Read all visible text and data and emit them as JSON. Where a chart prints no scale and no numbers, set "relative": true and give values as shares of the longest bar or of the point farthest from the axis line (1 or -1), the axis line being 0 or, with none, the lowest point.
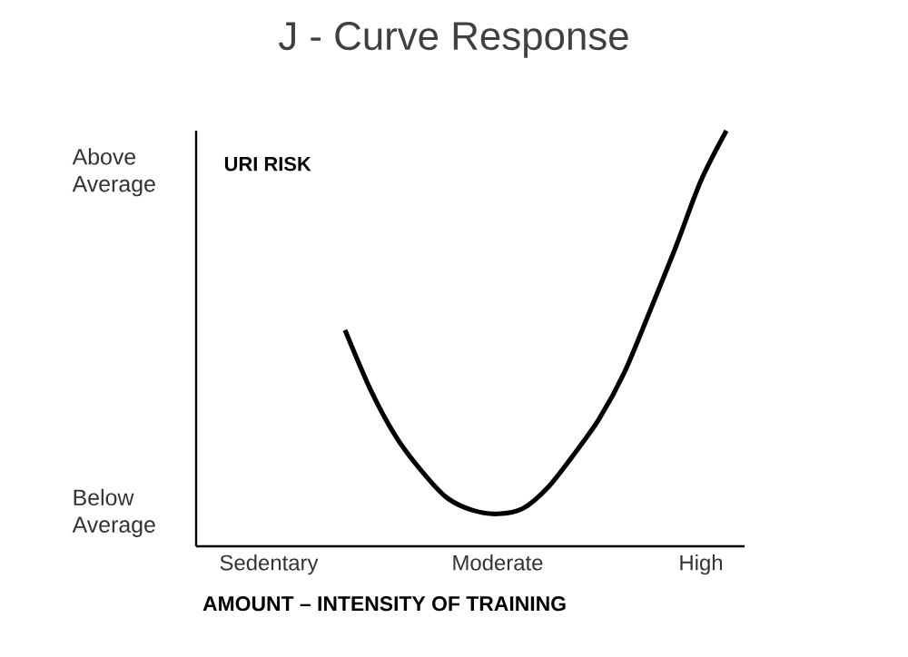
{
  "chart_data": {
    "type": "line",
    "title": "J - Curve Response",
    "xlabel": "AMOUNT – INTENSITY OF TRAINING",
    "categories": [
      "Sedentary",
      null,
      null,
      null,
      null,
      null,
      null,
      null,
      null,
      "Moderate",
      null,
      null,
      null,
      null,
      null,
      null,
      null,
      "High",
      null
    ],
    "relative": true,
    "color": "#000000",
    "marker": "none",
    "line_style": "solid",
    "values": [
      null,
      null,
      null,
      0.52,
      0.377,
      0.264,
      0.182,
      0.117,
      0.087,
      0.078,
      0.091,
      0.143,
      0.221,
      0.307,
      0.42,
      0.567,
      0.719,
      0.88,
      1.0
    ],
    "annotations": [
      "Above Average",
      "Below Average",
      "URI RISK"
    ]
  }
}
